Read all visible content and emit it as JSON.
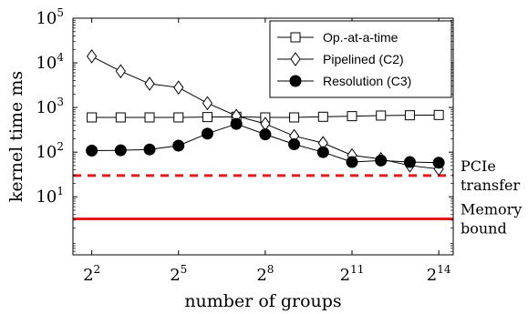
{
  "chart_data": {
    "type": "line",
    "xlabel": "number of groups",
    "ylabel": "kernel time ms",
    "x_scale": "log2",
    "y_scale": "log10",
    "xlim_exponent": [
      1.35,
      14.5
    ],
    "ylim_exponent": [
      -0.3,
      5
    ],
    "x_ticks": [
      {
        "base": "2",
        "exp": "2",
        "value": 2
      },
      {
        "base": "2",
        "exp": "5",
        "value": 5
      },
      {
        "base": "2",
        "exp": "8",
        "value": 8
      },
      {
        "base": "2",
        "exp": "11",
        "value": 11
      },
      {
        "base": "2",
        "exp": "14",
        "value": 14
      }
    ],
    "y_ticks": [
      {
        "base": "10",
        "exp": "1",
        "value": 1
      },
      {
        "base": "10",
        "exp": "2",
        "value": 2
      },
      {
        "base": "10",
        "exp": "3",
        "value": 3
      },
      {
        "base": "10",
        "exp": "4",
        "value": 4
      },
      {
        "base": "10",
        "exp": "5",
        "value": 5
      }
    ],
    "legend_position": "top-right",
    "series": [
      {
        "name": "Op.-at-a-time",
        "marker": "square-open",
        "x_exp": [
          2,
          3,
          4,
          5,
          6,
          7,
          8,
          9,
          10,
          11,
          12,
          13,
          14
        ],
        "y": [
          600,
          600,
          600,
          600,
          610,
          620,
          600,
          600,
          620,
          640,
          660,
          670,
          680
        ]
      },
      {
        "name": "Pipelined (C2)",
        "marker": "diamond-open",
        "x_exp": [
          2,
          3,
          4,
          5,
          6,
          7,
          8,
          9,
          10,
          11,
          12,
          13,
          14
        ],
        "y": [
          14000,
          6500,
          3400,
          2800,
          1250,
          650,
          430,
          230,
          160,
          85,
          70,
          50,
          42
        ]
      },
      {
        "name": "Resolution (C3)",
        "marker": "circle-filled",
        "x_exp": [
          2,
          3,
          4,
          5,
          6,
          7,
          8,
          9,
          10,
          11,
          12,
          13,
          14
        ],
        "y": [
          108,
          110,
          115,
          140,
          260,
          430,
          250,
          150,
          100,
          60,
          65,
          60,
          58
        ]
      }
    ],
    "reference_lines": [
      {
        "label": [
          "PCIe",
          "transfer"
        ],
        "y": 30,
        "style": "dashed",
        "color": "#e41a1c"
      },
      {
        "label": [
          "Memory",
          "bound"
        ],
        "y": 3.2,
        "style": "solid",
        "color": "#e41a1c"
      }
    ]
  }
}
